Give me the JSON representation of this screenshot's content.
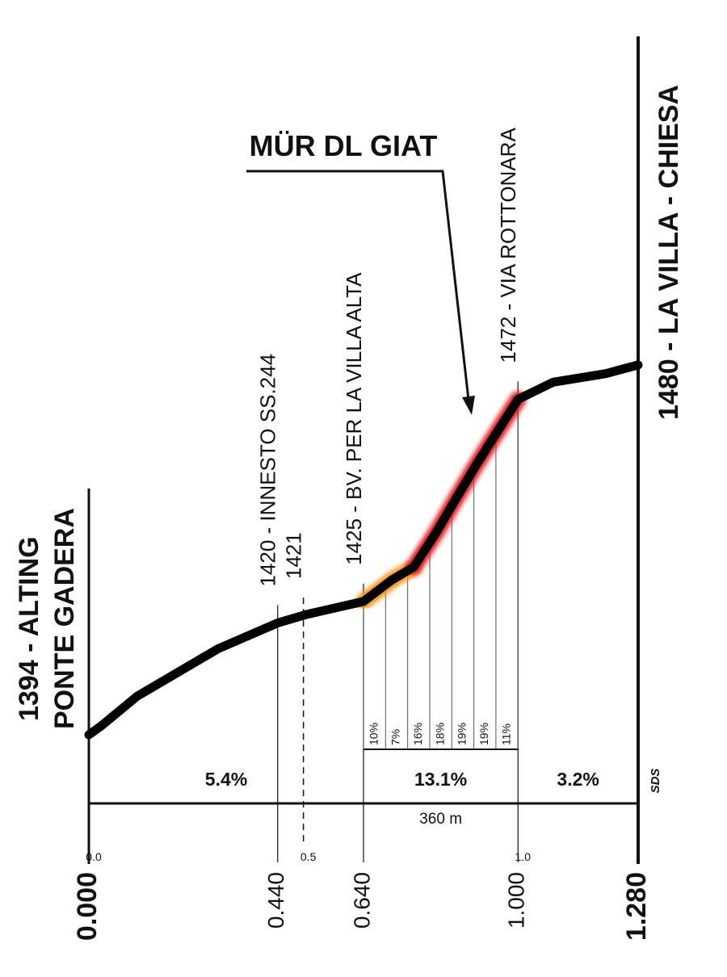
{
  "chart_data": {
    "type": "profile",
    "title": "MÜR DL GIAT",
    "start_label": [
      "1394 - ALTING",
      "PONTE GADERA"
    ],
    "end_label": "1480 - LA VILLA - CHIESA",
    "x": [
      0,
      0.028,
      0.113,
      0.301,
      0.44,
      0.508,
      0.64,
      0.706,
      0.757,
      0.809,
      0.856,
      0.904,
      0.955,
      1.0,
      1.082,
      1.205,
      1.28
    ],
    "elevation": [
      1394,
      1396,
      1403,
      1414,
      1420,
      1422,
      1425,
      1430,
      1433,
      1441,
      1449,
      1457,
      1465,
      1472,
      1476,
      1478,
      1480
    ],
    "color": "#000000",
    "highlight": [
      {
        "from": 0.64,
        "to": 0.757,
        "color": "#f7941d"
      },
      {
        "from": 0.757,
        "to": 1.0,
        "color": "#e31e24"
      }
    ],
    "xlim": [
      0,
      1.28
    ],
    "xticks": [
      {
        "value": 0,
        "label": "0.000"
      },
      {
        "value": 0.44,
        "label": "0.440"
      },
      {
        "value": 0.64,
        "label": "0.640"
      },
      {
        "value": 1,
        "label": "1.000"
      },
      {
        "value": 1.28,
        "label": "1.280"
      }
    ],
    "minor_xticks": [
      {
        "value": 0,
        "label": "0.0"
      },
      {
        "value": 0.5,
        "label": "0.5"
      },
      {
        "value": 1,
        "label": "1.0"
      }
    ],
    "waypoints": [
      {
        "x": 0.44,
        "label": "1420 - INNESTO SS.244"
      },
      {
        "x": 0.5,
        "label": "1421",
        "dashed": true
      },
      {
        "x": 0.64,
        "label": "1425 - BV. PER LA VILLA ALTA"
      },
      {
        "x": 1.0,
        "label": "1472 - VIA ROTTONARA"
      }
    ],
    "gradients": {
      "bounds": [
        0,
        0.64,
        1.0,
        1.28
      ],
      "values": [
        5.4,
        13.1,
        3.2
      ],
      "value_labels": [
        "5.4%",
        "13.1%",
        "3.2%"
      ]
    },
    "detail": {
      "from": 0.64,
      "to": 1.0,
      "length_label": "360 m",
      "values": [
        10,
        7,
        16,
        18,
        19,
        19,
        11
      ],
      "value_labels": [
        "10%",
        "7%",
        "16%",
        "18%",
        "19%",
        "19%",
        "11%"
      ]
    },
    "logo": "SDS"
  }
}
